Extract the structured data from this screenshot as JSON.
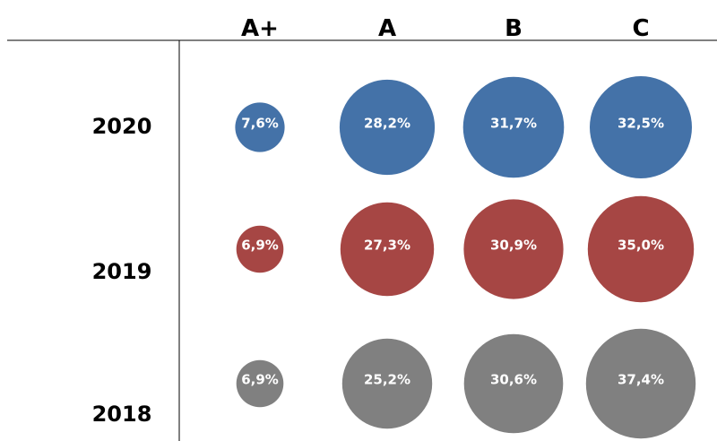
{
  "chart_data": {
    "type": "bubble-matrix",
    "columns": [
      "A+",
      "A",
      "B",
      "C"
    ],
    "rows": [
      "2020",
      "2019",
      "2018"
    ],
    "series": [
      {
        "name": "2020",
        "color": "#4472A8",
        "values": [
          7.6,
          28.2,
          31.7,
          32.5
        ],
        "labels": [
          "7,6%",
          "28,2%",
          "31,7%",
          "32,5%"
        ]
      },
      {
        "name": "2019",
        "color": "#A64644",
        "values": [
          6.9,
          27.3,
          30.9,
          35.0
        ],
        "labels": [
          "6,9%",
          "27,3%",
          "30,9%",
          "35,0%"
        ]
      },
      {
        "name": "2018",
        "color": "#808080",
        "values": [
          6.9,
          25.2,
          30.6,
          37.4
        ],
        "labels": [
          "6,9%",
          "25,2%",
          "30,6%",
          "37,4%"
        ]
      }
    ],
    "unit": "%"
  }
}
